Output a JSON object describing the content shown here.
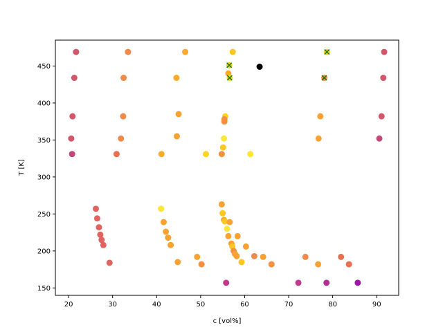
{
  "chart_data": {
    "type": "scatter",
    "xlabel": "c [vol%]",
    "ylabel": "T [K]",
    "xlim": [
      17,
      95
    ],
    "ylim": [
      140,
      485
    ],
    "xticks": [
      20,
      30,
      40,
      50,
      60,
      70,
      80,
      90
    ],
    "yticks": [
      150,
      200,
      250,
      300,
      350,
      400,
      450
    ],
    "grid": false,
    "points": [
      {
        "x": 21.7,
        "y": 469,
        "color": "#d4566a"
      },
      {
        "x": 33.5,
        "y": 469,
        "color": "#f08a4b"
      },
      {
        "x": 46.5,
        "y": 469,
        "color": "#fbaa2a"
      },
      {
        "x": 57.3,
        "y": 469,
        "color": "#fcc723"
      },
      {
        "x": 78.7,
        "y": 469,
        "color": "#fcd425"
      },
      {
        "x": 91.7,
        "y": 469,
        "color": "#d4566a"
      },
      {
        "x": 56.5,
        "y": 451,
        "color": "#fcd425"
      },
      {
        "x": 63.4,
        "y": 449,
        "color": "#000000"
      },
      {
        "x": 21.3,
        "y": 434,
        "color": "#d4566a"
      },
      {
        "x": 32.5,
        "y": 434,
        "color": "#f08a4b"
      },
      {
        "x": 44.5,
        "y": 434,
        "color": "#fbaa2a"
      },
      {
        "x": 56.3,
        "y": 440,
        "color": "#fbaa2a"
      },
      {
        "x": 56.6,
        "y": 434,
        "color": "#fcd425"
      },
      {
        "x": 78.1,
        "y": 434,
        "color": "#f5913e"
      },
      {
        "x": 91.5,
        "y": 434,
        "color": "#d4566a"
      },
      {
        "x": 20.9,
        "y": 382,
        "color": "#d4566a"
      },
      {
        "x": 32.4,
        "y": 382,
        "color": "#f08a4b"
      },
      {
        "x": 45.0,
        "y": 385,
        "color": "#f8a233"
      },
      {
        "x": 55.6,
        "y": 382,
        "color": "#fcd425"
      },
      {
        "x": 55.4,
        "y": 378,
        "color": "#f5913e"
      },
      {
        "x": 55.4,
        "y": 375,
        "color": "#f5913e"
      },
      {
        "x": 77.2,
        "y": 382,
        "color": "#f8a233"
      },
      {
        "x": 91.1,
        "y": 382,
        "color": "#d4566a"
      },
      {
        "x": 20.6,
        "y": 352,
        "color": "#d4566a"
      },
      {
        "x": 31.9,
        "y": 352,
        "color": "#f08a4b"
      },
      {
        "x": 44.6,
        "y": 355,
        "color": "#f8a233"
      },
      {
        "x": 55.3,
        "y": 352,
        "color": "#fce63a"
      },
      {
        "x": 55.1,
        "y": 340,
        "color": "#fcc723"
      },
      {
        "x": 76.8,
        "y": 352,
        "color": "#f8a233"
      },
      {
        "x": 90.6,
        "y": 352,
        "color": "#c4477a"
      },
      {
        "x": 20.8,
        "y": 331,
        "color": "#c4477a"
      },
      {
        "x": 30.9,
        "y": 331,
        "color": "#e8704f"
      },
      {
        "x": 41.1,
        "y": 331,
        "color": "#fbaa2a"
      },
      {
        "x": 51.2,
        "y": 331,
        "color": "#fcd425"
      },
      {
        "x": 54.8,
        "y": 331,
        "color": "#f5913e"
      },
      {
        "x": 61.3,
        "y": 331,
        "color": "#fce63a"
      },
      {
        "x": 26.2,
        "y": 257,
        "color": "#e06360"
      },
      {
        "x": 26.5,
        "y": 244,
        "color": "#e06360"
      },
      {
        "x": 26.9,
        "y": 232,
        "color": "#e06360"
      },
      {
        "x": 27.2,
        "y": 222,
        "color": "#e06360"
      },
      {
        "x": 27.5,
        "y": 215,
        "color": "#e06360"
      },
      {
        "x": 27.9,
        "y": 208,
        "color": "#e06360"
      },
      {
        "x": 29.3,
        "y": 184,
        "color": "#e06360"
      },
      {
        "x": 41.0,
        "y": 257,
        "color": "#fce63a"
      },
      {
        "x": 41.6,
        "y": 239,
        "color": "#f8a233"
      },
      {
        "x": 42.1,
        "y": 226,
        "color": "#f8a233"
      },
      {
        "x": 42.6,
        "y": 218,
        "color": "#f8a233"
      },
      {
        "x": 43.2,
        "y": 208,
        "color": "#f8a233"
      },
      {
        "x": 44.8,
        "y": 185,
        "color": "#f8a233"
      },
      {
        "x": 49.2,
        "y": 192,
        "color": "#f8a233"
      },
      {
        "x": 50.2,
        "y": 182,
        "color": "#f5913e"
      },
      {
        "x": 54.8,
        "y": 263,
        "color": "#f8a233"
      },
      {
        "x": 55.0,
        "y": 251,
        "color": "#fcc723"
      },
      {
        "x": 55.3,
        "y": 242,
        "color": "#f8a233"
      },
      {
        "x": 55.5,
        "y": 240,
        "color": "#fcc723"
      },
      {
        "x": 56.6,
        "y": 239,
        "color": "#f8a233"
      },
      {
        "x": 56.0,
        "y": 230,
        "color": "#fce63a"
      },
      {
        "x": 56.3,
        "y": 220,
        "color": "#f8a233"
      },
      {
        "x": 58.4,
        "y": 220,
        "color": "#f8a233"
      },
      {
        "x": 57.0,
        "y": 210,
        "color": "#f8a233"
      },
      {
        "x": 57.2,
        "y": 206,
        "color": "#fcc723"
      },
      {
        "x": 57.5,
        "y": 200,
        "color": "#f5913e"
      },
      {
        "x": 57.8,
        "y": 196,
        "color": "#f8a233"
      },
      {
        "x": 58.2,
        "y": 193,
        "color": "#f8a233"
      },
      {
        "x": 59.3,
        "y": 185,
        "color": "#fcc723"
      },
      {
        "x": 60.3,
        "y": 206,
        "color": "#f8a233"
      },
      {
        "x": 62.2,
        "y": 193,
        "color": "#f08a4b"
      },
      {
        "x": 64.2,
        "y": 192,
        "color": "#f8a233"
      },
      {
        "x": 66.1,
        "y": 182,
        "color": "#f5913e"
      },
      {
        "x": 73.8,
        "y": 192,
        "color": "#f08a4b"
      },
      {
        "x": 76.7,
        "y": 182,
        "color": "#f8a233"
      },
      {
        "x": 81.9,
        "y": 192,
        "color": "#e8704f"
      },
      {
        "x": 83.7,
        "y": 182,
        "color": "#e8704f"
      },
      {
        "x": 55.8,
        "y": 157,
        "color": "#c0398a"
      },
      {
        "x": 72.2,
        "y": 157,
        "color": "#c0398a"
      },
      {
        "x": 78.6,
        "y": 157,
        "color": "#b13096"
      },
      {
        "x": 85.7,
        "y": 157,
        "color": "#9b19a6"
      }
    ],
    "markers_x": [
      {
        "x": 78.7,
        "y": 469
      },
      {
        "x": 56.5,
        "y": 451
      },
      {
        "x": 56.6,
        "y": 434
      },
      {
        "x": 78.1,
        "y": 434
      }
    ],
    "marker_x_color": "#1a7a1a"
  }
}
